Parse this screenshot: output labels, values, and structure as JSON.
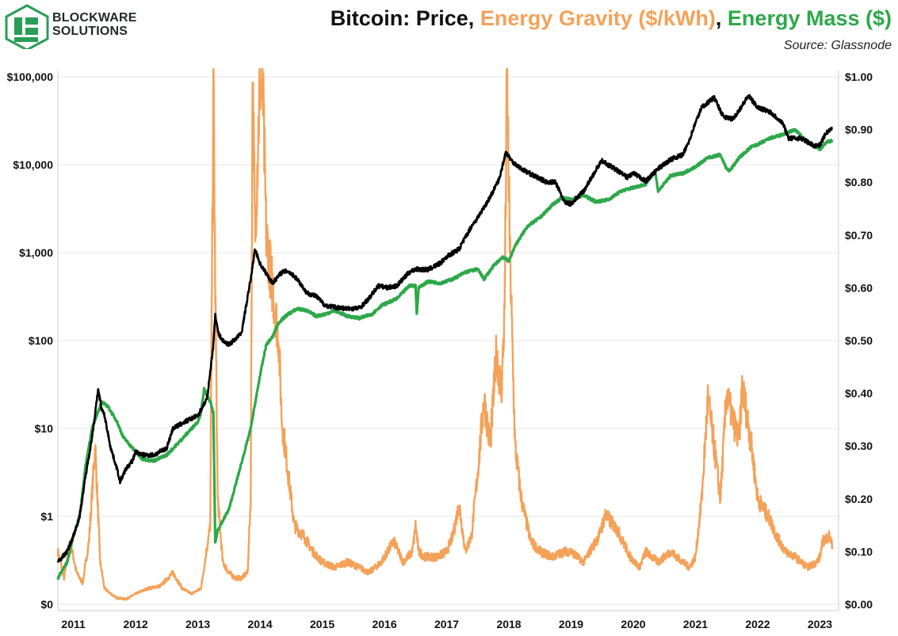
{
  "header": {
    "logo_line1": "BLOCKWARE",
    "logo_line2": "SOLUTIONS",
    "title_part1": "Bitcoin: Price",
    "sep1": ", ",
    "title_part2": "Energy Gravity ($/kWh)",
    "sep2": ", ",
    "title_part3": "Energy Mass ($)",
    "source": "Source: Glassnode"
  },
  "colors": {
    "price": "#000000",
    "energy_gravity": "#f4a259",
    "energy_mass": "#2ea84a",
    "logo": "#2a9d56",
    "grid": "#e6e6e6"
  },
  "chart_data": {
    "type": "line",
    "title": "Bitcoin: Price, Energy Gravity ($/kWh), Energy Mass ($)",
    "left_axis": {
      "scale": "log",
      "range": [
        0.1,
        100000
      ],
      "tick_values": [
        0.1,
        1,
        10,
        100,
        1000,
        10000,
        100000
      ],
      "tick_labels": [
        "$0",
        "$1",
        "$10",
        "$100",
        "$1,000",
        "$10,000",
        "$100,000"
      ]
    },
    "right_axis": {
      "scale": "linear",
      "range": [
        0.0,
        1.0
      ],
      "tick_values": [
        0.0,
        0.1,
        0.2,
        0.3,
        0.4,
        0.5,
        0.6,
        0.7,
        0.8,
        0.9,
        1.0
      ],
      "tick_labels": [
        "$0.00",
        "$0.10",
        "$0.20",
        "$0.30",
        "$0.40",
        "$0.50",
        "$0.60",
        "$0.70",
        "$0.80",
        "$0.90",
        "$1.00"
      ]
    },
    "x_axis": {
      "range": [
        2010.75,
        2023.3
      ],
      "tick_values": [
        2011,
        2012,
        2013,
        2014,
        2015,
        2016,
        2017,
        2018,
        2019,
        2020,
        2021,
        2022,
        2023
      ],
      "tick_labels": [
        "2011",
        "2012",
        "2013",
        "2014",
        "2015",
        "2016",
        "2017",
        "2018",
        "2019",
        "2020",
        "2021",
        "2022",
        "2023"
      ]
    },
    "grid": "horizontal",
    "series": [
      {
        "name": "Price",
        "axis": "left",
        "x": [
          2010.75,
          2010.9,
          2011.0,
          2011.1,
          2011.2,
          2011.3,
          2011.4,
          2011.45,
          2011.5,
          2011.6,
          2011.7,
          2011.75,
          2011.85,
          2011.95,
          2012.0,
          2012.1,
          2012.3,
          2012.5,
          2012.6,
          2012.8,
          2013.0,
          2013.15,
          2013.25,
          2013.28,
          2013.33,
          2013.4,
          2013.5,
          2013.7,
          2013.85,
          2013.92,
          2014.0,
          2014.1,
          2014.2,
          2014.35,
          2014.45,
          2014.6,
          2014.75,
          2014.9,
          2015.05,
          2015.2,
          2015.4,
          2015.6,
          2015.75,
          2015.9,
          2016.05,
          2016.2,
          2016.4,
          2016.5,
          2016.7,
          2016.9,
          2017.0,
          2017.2,
          2017.4,
          2017.5,
          2017.7,
          2017.85,
          2017.95,
          2018.05,
          2018.2,
          2018.4,
          2018.6,
          2018.75,
          2018.9,
          2019.0,
          2019.2,
          2019.45,
          2019.5,
          2019.7,
          2019.9,
          2020.0,
          2020.2,
          2020.4,
          2020.6,
          2020.8,
          2020.9,
          2021.0,
          2021.1,
          2021.3,
          2021.45,
          2021.6,
          2021.75,
          2021.85,
          2022.0,
          2022.2,
          2022.4,
          2022.5,
          2022.7,
          2022.9,
          2023.0,
          2023.1,
          2023.2
        ],
        "values": [
          0.3,
          0.4,
          0.6,
          1.0,
          3.0,
          8.0,
          28.0,
          17.0,
          14.0,
          6.0,
          3.5,
          2.5,
          3.5,
          4.3,
          5.5,
          5.0,
          5.0,
          6.0,
          10.0,
          12.0,
          14.0,
          22.0,
          90.0,
          200.0,
          120.0,
          100.0,
          90.0,
          120.0,
          500.0,
          1100.0,
          750.0,
          580.0,
          450.0,
          600.0,
          620.0,
          500.0,
          350.0,
          320.0,
          250.0,
          240.0,
          230.0,
          235.0,
          300.0,
          420.0,
          400.0,
          420.0,
          600.0,
          650.0,
          640.0,
          760.0,
          900.0,
          1100.0,
          2000.0,
          2500.0,
          4300.0,
          7000.0,
          14000.0,
          11000.0,
          9000.0,
          7500.0,
          6400.0,
          6300.0,
          3700.0,
          3600.0,
          5000.0,
          10000.0,
          11000.0,
          9000.0,
          7200.0,
          8000.0,
          6500.0,
          9000.0,
          11500.0,
          13000.0,
          19000.0,
          30000.0,
          45000.0,
          58000.0,
          35000.0,
          33000.0,
          47000.0,
          61000.0,
          45000.0,
          40000.0,
          30000.0,
          20000.0,
          20000.0,
          16500.0,
          16800.0,
          23000.0,
          26000.0
        ]
      },
      {
        "name": "Energy Gravity ($/kWh)",
        "axis": "right",
        "x": [
          2010.75,
          2010.85,
          2010.95,
          2011.05,
          2011.15,
          2011.25,
          2011.35,
          2011.43,
          2011.5,
          2011.6,
          2011.7,
          2011.85,
          2012.0,
          2012.2,
          2012.4,
          2012.6,
          2012.75,
          2012.9,
          2013.05,
          2013.2,
          2013.25,
          2013.28,
          2013.32,
          2013.4,
          2013.5,
          2013.6,
          2013.7,
          2013.8,
          2013.85,
          2013.88,
          2013.92,
          2014.0,
          2014.05,
          2014.1,
          2014.2,
          2014.3,
          2014.35,
          2014.45,
          2014.55,
          2014.7,
          2014.85,
          2015.0,
          2015.2,
          2015.4,
          2015.6,
          2015.75,
          2015.95,
          2016.0,
          2016.15,
          2016.3,
          2016.45,
          2016.5,
          2016.55,
          2016.65,
          2016.85,
          2017.0,
          2017.1,
          2017.2,
          2017.3,
          2017.4,
          2017.5,
          2017.6,
          2017.7,
          2017.8,
          2017.88,
          2017.93,
          2017.97,
          2018.02,
          2018.1,
          2018.2,
          2018.35,
          2018.5,
          2018.7,
          2018.9,
          2019.0,
          2019.2,
          2019.45,
          2019.55,
          2019.75,
          2019.95,
          2020.1,
          2020.2,
          2020.4,
          2020.6,
          2020.8,
          2020.9,
          2021.0,
          2021.1,
          2021.2,
          2021.3,
          2021.4,
          2021.5,
          2021.6,
          2021.7,
          2021.75,
          2021.8,
          2021.9,
          2022.0,
          2022.1,
          2022.2,
          2022.3,
          2022.45,
          2022.6,
          2022.8,
          2022.95,
          2023.0,
          2023.05,
          2023.15,
          2023.2
        ],
        "values": [
          0.1,
          0.05,
          0.12,
          0.06,
          0.04,
          0.12,
          0.3,
          0.08,
          0.03,
          0.02,
          0.012,
          0.01,
          0.02,
          0.03,
          0.035,
          0.06,
          0.03,
          0.02,
          0.03,
          0.15,
          1.0,
          0.6,
          0.2,
          0.08,
          0.06,
          0.05,
          0.05,
          0.06,
          0.2,
          1.0,
          0.7,
          1.0,
          0.95,
          0.7,
          0.6,
          0.5,
          0.35,
          0.25,
          0.15,
          0.13,
          0.1,
          0.08,
          0.07,
          0.08,
          0.07,
          0.06,
          0.08,
          0.09,
          0.12,
          0.08,
          0.1,
          0.15,
          0.1,
          0.09,
          0.09,
          0.1,
          0.13,
          0.19,
          0.1,
          0.13,
          0.25,
          0.39,
          0.3,
          0.48,
          0.4,
          0.55,
          1.0,
          0.65,
          0.3,
          0.2,
          0.12,
          0.1,
          0.09,
          0.1,
          0.1,
          0.08,
          0.13,
          0.17,
          0.14,
          0.09,
          0.07,
          0.1,
          0.08,
          0.1,
          0.08,
          0.07,
          0.09,
          0.2,
          0.39,
          0.3,
          0.2,
          0.4,
          0.35,
          0.31,
          0.41,
          0.38,
          0.3,
          0.2,
          0.18,
          0.16,
          0.13,
          0.1,
          0.09,
          0.07,
          0.08,
          0.09,
          0.12,
          0.13,
          0.11
        ]
      },
      {
        "name": "Energy Mass ($)",
        "axis": "left",
        "x": [
          2010.75,
          2010.9,
          2011.0,
          2011.1,
          2011.2,
          2011.3,
          2011.45,
          2011.55,
          2011.7,
          2011.8,
          2011.95,
          2012.1,
          2012.3,
          2012.5,
          2012.7,
          2012.9,
          2013.0,
          2013.05,
          2013.1,
          2013.2,
          2013.25,
          2013.28,
          2013.32,
          2013.5,
          2013.7,
          2013.85,
          2014.0,
          2014.1,
          2014.2,
          2014.3,
          2014.45,
          2014.6,
          2014.75,
          2014.9,
          2015.05,
          2015.2,
          2015.4,
          2015.6,
          2015.8,
          2015.95,
          2016.2,
          2016.4,
          2016.5,
          2016.52,
          2016.55,
          2016.7,
          2016.9,
          2017.1,
          2017.3,
          2017.5,
          2017.6,
          2017.75,
          2017.9,
          2018.0,
          2018.1,
          2018.3,
          2018.5,
          2018.7,
          2018.85,
          2019.0,
          2019.2,
          2019.4,
          2019.6,
          2019.8,
          2020.0,
          2020.2,
          2020.35,
          2020.4,
          2020.6,
          2020.8,
          2021.0,
          2021.2,
          2021.4,
          2021.5,
          2021.55,
          2021.7,
          2021.9,
          2022.0,
          2022.2,
          2022.4,
          2022.6,
          2022.8,
          2023.0,
          2023.1,
          2023.2
        ],
        "values": [
          0.2,
          0.3,
          0.6,
          1.0,
          4.0,
          10.0,
          20.0,
          18.0,
          12.0,
          8.0,
          6.0,
          4.5,
          4.3,
          5.0,
          7.0,
          10.0,
          12.0,
          15.0,
          28.0,
          20.0,
          15.0,
          0.5,
          0.7,
          1.2,
          4.0,
          10.0,
          40.0,
          90.0,
          110.0,
          160.0,
          200.0,
          230.0,
          220.0,
          190.0,
          200.0,
          220.0,
          190.0,
          180.0,
          200.0,
          250.0,
          300.0,
          420.0,
          420.0,
          200.0,
          400.0,
          470.0,
          450.0,
          500.0,
          600.0,
          650.0,
          500.0,
          700.0,
          900.0,
          800.0,
          1200.0,
          2000.0,
          2500.0,
          3500.0,
          4200.0,
          4000.0,
          4500.0,
          3800.0,
          4000.0,
          5000.0,
          5500.0,
          6000.0,
          8500.0,
          5000.0,
          7500.0,
          8000.0,
          9500.0,
          12000.0,
          13000.0,
          9000.0,
          8500.0,
          12000.0,
          16000.0,
          17000.0,
          20000.0,
          22000.0,
          25000.0,
          18000.0,
          15000.0,
          18000.0,
          19000.0
        ]
      }
    ]
  }
}
